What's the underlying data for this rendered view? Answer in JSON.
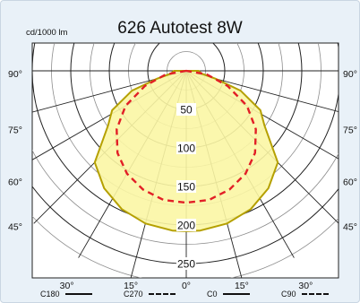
{
  "chart_data": {
    "type": "polar",
    "title": "626 Autotest 8W",
    "unit_label": "cd/1000 lm",
    "radial_ticks": [
      50,
      100,
      150,
      200,
      250
    ],
    "radial_max": 280,
    "vertical_angle_labels": [
      "90°",
      "75°",
      "60°",
      "45°"
    ],
    "horizontal_angle_labels": [
      "30°",
      "15°",
      "0°",
      "15°",
      "30°"
    ],
    "series": [
      {
        "name": "C0",
        "style": "solid",
        "color": "#b5a000",
        "fill": "#fbf6a4",
        "points_deg_cd": [
          [
            -90,
            16
          ],
          [
            -80,
            20
          ],
          [
            -75,
            39
          ],
          [
            -70,
            75
          ],
          [
            -62,
            109
          ],
          [
            -55,
            124
          ],
          [
            -45,
            168
          ],
          [
            -35,
            186
          ],
          [
            -25,
            198
          ],
          [
            -15,
            205
          ],
          [
            -5,
            208
          ],
          [
            0,
            208
          ],
          [
            5,
            208
          ],
          [
            15,
            205
          ],
          [
            25,
            198
          ],
          [
            35,
            186
          ],
          [
            45,
            168
          ],
          [
            55,
            124
          ],
          [
            62,
            109
          ],
          [
            70,
            75
          ],
          [
            75,
            39
          ],
          [
            80,
            20
          ],
          [
            90,
            16
          ]
        ]
      },
      {
        "name": "C90",
        "style": "dashed",
        "color": "#e21f26",
        "points_deg_cd": [
          [
            -90,
            0
          ],
          [
            -80,
            27
          ],
          [
            -70,
            57
          ],
          [
            -60,
            91
          ],
          [
            -50,
            118
          ],
          [
            -40,
            139
          ],
          [
            -30,
            154
          ],
          [
            -20,
            164
          ],
          [
            -10,
            170
          ],
          [
            0,
            171
          ],
          [
            10,
            170
          ],
          [
            20,
            164
          ],
          [
            30,
            154
          ],
          [
            40,
            139
          ],
          [
            50,
            118
          ],
          [
            60,
            91
          ],
          [
            70,
            57
          ],
          [
            80,
            27
          ],
          [
            90,
            0
          ]
        ]
      }
    ],
    "legend": [
      {
        "label": "C180",
        "style": "solid"
      },
      {
        "label": "C270",
        "style": "dashed"
      },
      {
        "label": "C0",
        "style": "solid"
      },
      {
        "label": "C90",
        "style": "dashed"
      }
    ]
  }
}
